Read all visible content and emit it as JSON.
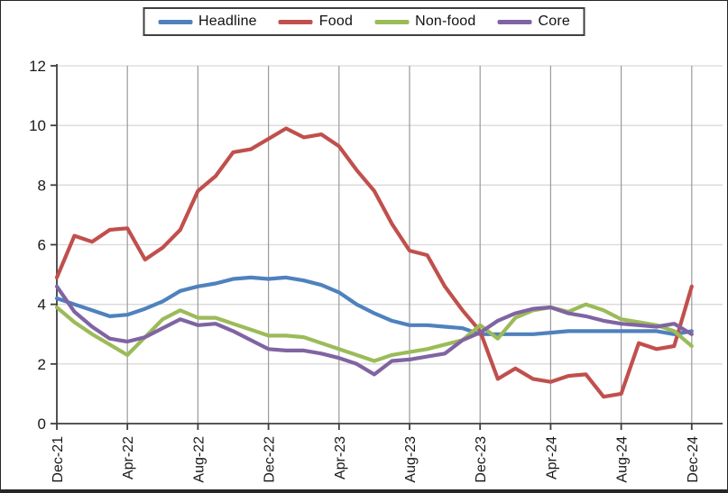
{
  "chart_data": {
    "type": "line",
    "title": "",
    "xlabel": "",
    "ylabel": "",
    "ylim": [
      0,
      12
    ],
    "grid": {
      "horizontal": true,
      "vertical": true
    },
    "legend_position": "top-center-boxed",
    "x": [
      "Dec-21",
      "Jan-22",
      "Feb-22",
      "Mar-22",
      "Apr-22",
      "May-22",
      "Jun-22",
      "Jul-22",
      "Aug-22",
      "Sep-22",
      "Oct-22",
      "Nov-22",
      "Dec-22",
      "Jan-23",
      "Feb-23",
      "Mar-23",
      "Apr-23",
      "May-23",
      "Jun-23",
      "Jul-23",
      "Aug-23",
      "Sep-23",
      "Oct-23",
      "Nov-23",
      "Dec-23",
      "Jan-24",
      "Feb-24",
      "Mar-24",
      "Apr-24",
      "May-24",
      "Jun-24",
      "Jul-24",
      "Aug-24",
      "Sep-24",
      "Oct-24",
      "Nov-24",
      "Dec-24"
    ],
    "x_ticks": [
      {
        "label": "Dec-21",
        "m": 0
      },
      {
        "label": "Apr-22",
        "m": 4
      },
      {
        "label": "Aug-22",
        "m": 8
      },
      {
        "label": "Dec-22",
        "m": 12
      },
      {
        "label": "Apr-23",
        "m": 16
      },
      {
        "label": "Aug-23",
        "m": 20
      },
      {
        "label": "Dec-23",
        "m": 24
      },
      {
        "label": "Apr-24",
        "m": 28
      },
      {
        "label": "Aug-24",
        "m": 32
      },
      {
        "label": "Dec-24",
        "m": 36
      }
    ],
    "y_ticks": [
      {
        "label": "0",
        "v": 0
      },
      {
        "label": "2",
        "v": 2
      },
      {
        "label": "4",
        "v": 4
      },
      {
        "label": "6",
        "v": 6
      },
      {
        "label": "8",
        "v": 8
      },
      {
        "label": "10",
        "v": 10
      },
      {
        "label": "12",
        "v": 12
      }
    ],
    "series": [
      {
        "name": "Headline",
        "color": "#4F81BD",
        "values": [
          4.2,
          4.0,
          3.8,
          3.6,
          3.65,
          3.85,
          4.1,
          4.45,
          4.6,
          4.7,
          4.85,
          4.9,
          4.85,
          4.9,
          4.8,
          4.65,
          4.4,
          4.0,
          3.7,
          3.45,
          3.3,
          3.3,
          3.25,
          3.2,
          3.0,
          3.0,
          3.0,
          3.0,
          3.05,
          3.1,
          3.1,
          3.1,
          3.1,
          3.1,
          3.1,
          3.0,
          3.1
        ]
      },
      {
        "name": "Food",
        "color": "#C0504D",
        "values": [
          4.9,
          6.3,
          6.1,
          6.5,
          6.55,
          5.5,
          5.9,
          6.5,
          7.8,
          8.3,
          9.1,
          9.2,
          9.55,
          9.9,
          9.6,
          9.7,
          9.3,
          8.5,
          7.8,
          6.7,
          5.8,
          5.65,
          4.6,
          3.8,
          3.1,
          1.5,
          1.85,
          1.5,
          1.4,
          1.6,
          1.65,
          0.9,
          1.0,
          2.7,
          2.5,
          2.6,
          4.6
        ]
      },
      {
        "name": "Non-food",
        "color": "#9BBB59",
        "values": [
          3.9,
          3.4,
          3.0,
          2.65,
          2.3,
          2.9,
          3.5,
          3.8,
          3.55,
          3.55,
          3.35,
          3.15,
          2.95,
          2.95,
          2.9,
          2.7,
          2.5,
          2.3,
          2.1,
          2.3,
          2.4,
          2.5,
          2.65,
          2.8,
          3.3,
          2.85,
          3.55,
          3.8,
          3.9,
          3.75,
          4.0,
          3.8,
          3.5,
          3.4,
          3.3,
          3.1,
          2.6
        ]
      },
      {
        "name": "Core",
        "color": "#8064A2",
        "values": [
          4.6,
          3.75,
          3.25,
          2.85,
          2.75,
          2.9,
          3.2,
          3.5,
          3.3,
          3.35,
          3.1,
          2.8,
          2.5,
          2.45,
          2.45,
          2.35,
          2.2,
          2.0,
          1.65,
          2.1,
          2.15,
          2.25,
          2.35,
          2.8,
          3.05,
          3.45,
          3.7,
          3.85,
          3.9,
          3.7,
          3.6,
          3.45,
          3.35,
          3.3,
          3.25,
          3.35,
          3.0
        ]
      }
    ],
    "colors": {
      "axis": "#3f3f3f",
      "vertical_grid": "#9a9a9a",
      "horizontal_grid": "#d9d9d9",
      "background": "#ffffff"
    }
  }
}
